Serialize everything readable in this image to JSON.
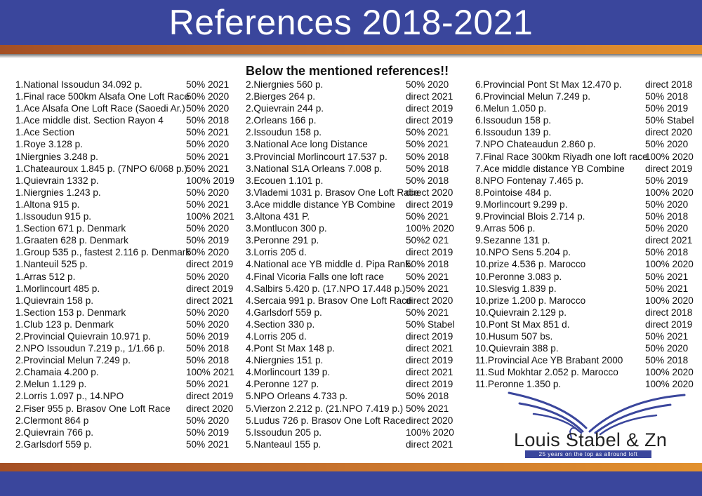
{
  "header": {
    "title": "References 2018-2021"
  },
  "subtitle": "Below the mentioned references!!",
  "colors": {
    "header_blue": "#3a469c",
    "band_orange": "#c8742e"
  },
  "columns": [
    [
      [
        "1.National Issoudun 34.092 p.",
        "50% 2021"
      ],
      [
        "1.Final race 500km Alsafa One Loft Race",
        "50% 2020"
      ],
      [
        "1.Ace Alsafa One Loft Race (Saoedi Ar.)",
        "50% 2020"
      ],
      [
        "1.Ace middle dist. Section Rayon 4",
        "50% 2018"
      ],
      [
        "1.Ace Section",
        "50% 2021"
      ],
      [
        "1.Roye 3.128 p.",
        "50% 2020"
      ],
      [
        "1Niergnies 3.248 p.",
        "50% 2021"
      ],
      [
        "1.Chateauroux 1.845 p. (7NPO 6/068 p.)",
        "50% 2021"
      ],
      [
        "1.Quievrain 1332 p.",
        "100% 2019"
      ],
      [
        "1.Niergnies 1.243 p.",
        "50% 2020"
      ],
      [
        "1.Altona 915 p.",
        "50% 2021"
      ],
      [
        "1.Issoudun 915 p.",
        "100% 2021"
      ],
      [
        "1.Section 671 p. Denmark",
        "50% 2020"
      ],
      [
        "1.Graaten 628 p. Denmark",
        "50% 2019"
      ],
      [
        "1.Group 535 p., fastest 2.116 p. Denmark",
        "50% 2020"
      ],
      [
        "1.Nanteuil 525 p.",
        "direct 2019"
      ],
      [
        "1.Arras 512 p.",
        "50% 2020"
      ],
      [
        "1.Morlincourt 485 p.",
        "direct 2019"
      ],
      [
        "1.Quievrain 158 p.",
        "direct 2021"
      ],
      [
        "1.Section 153 p. Denmark",
        "50% 2020"
      ],
      [
        "1.Club 123 p. Denmark",
        "50% 2020"
      ],
      [
        "2.Provincial Quievrain 10.971 p.",
        "50% 2019"
      ],
      [
        "2.NPO Issoudun 7.219 p., 1/1.66 p.",
        "50% 2018"
      ],
      [
        "2.Provincial Melun 7.249 p.",
        "50% 2018"
      ],
      [
        "2.Chamaia 4.200 p.",
        "100% 2021"
      ],
      [
        "2.Melun 1.129 p.",
        "50% 2021"
      ],
      [
        "2.Lorris 1.097 p., 14.NPO",
        "direct 2019"
      ],
      [
        "2.Fiser 955 p. Brasov One Loft Race",
        "direct 2020"
      ],
      [
        "2.Clermont 864 p",
        "50% 2020"
      ],
      [
        "2.Quievrain 766 p.",
        "50% 2019"
      ],
      [
        "2.Garlsdorf 559 p.",
        "50% 2021"
      ]
    ],
    [
      [
        "2.Niergnies 560 p.",
        "50% 2020"
      ],
      [
        "2.Bierges 264 p.",
        "direct 2021"
      ],
      [
        "2.Quievrain 244 p.",
        "direct 2019"
      ],
      [
        "2.Orleans 166 p.",
        "direct 2019"
      ],
      [
        "2.Issoudun 158 p.",
        "50% 2021"
      ],
      [
        "3.National Ace long Distance",
        "50% 2021"
      ],
      [
        "3.Provincial Morlincourt 17.537 p.",
        "50% 2018"
      ],
      [
        "3.National S1A Orleans 7.008 p.",
        "50%  2018"
      ],
      [
        "3.Ecouen 1.101 p.",
        "50% 2018"
      ],
      [
        "3.Vlademi 1031 p. Brasov One Loft Race",
        "direct 2020"
      ],
      [
        "3.Ace middle distance YB Combine",
        "direct 2019"
      ],
      [
        "3.Altona 431 P.",
        "50% 2021"
      ],
      [
        "3.Montlucon 300 p.",
        "100% 2020"
      ],
      [
        "3.Peronne 291 p.",
        "50%2 021"
      ],
      [
        "3.Lorris 205 d.",
        "direct 2019"
      ],
      [
        "4.National ace YB middle d. Pipa Rank.",
        "50% 2018"
      ],
      [
        "4.Final Vicoria Falls one loft race",
        "50% 2021"
      ],
      [
        "4.Salbirs 5.420 p. (17.NPO 17.448 p.)",
        "50% 2021"
      ],
      [
        "4.Sercaia 991 p. Brasov One Loft Race",
        "direct 2020"
      ],
      [
        "4.Garlsdorf 559 p.",
        "50% 2021"
      ],
      [
        "4.Section 330 p.",
        "50% Stabel"
      ],
      [
        "4.Lorris 205 d.",
        "direct 2019"
      ],
      [
        "4.Pont St Max 148 p.",
        "direct 2021"
      ],
      [
        "4.Niergnies 151 p.",
        "direct 2019"
      ],
      [
        "4.Morlincourt 139 p.",
        "direct 2021"
      ],
      [
        "4.Peronne 127 p.",
        "direct 2019"
      ],
      [
        "5.NPO Orleans 4.733 p.",
        "50% 2018"
      ],
      [
        "5.Vierzon 2.212 p. (21.NPO 7.419 p.)",
        "50% 2021"
      ],
      [
        "5.Ludus 726 p. Brasov One Loft Race",
        "direct 2020"
      ],
      [
        "5.Issoudun 205 p.",
        "100% 2020"
      ],
      [
        "5.Nanteaul 155 p.",
        "direct 2021"
      ]
    ],
    [
      [
        "6.Provincial Pont St Max 12.470 p.",
        "direct  2018"
      ],
      [
        "6.Provincial Melun 7.249 p.",
        "50%  2018"
      ],
      [
        "6.Melun 1.050 p.",
        "50% 2019"
      ],
      [
        "6.Issoudun 158 p.",
        "50% Stabel"
      ],
      [
        "6.Issoudun 139 p.",
        "direct 2020"
      ],
      [
        "7.NPO Chateaudun 2.860 p.",
        "50% 2020"
      ],
      [
        "7.Final Race 300km Riyadh one loft race",
        "100% 2020"
      ],
      [
        "7.Ace middle distance YB Combine",
        "direct 2019"
      ],
      [
        "8.NPO Fontenay 7.465 p.",
        "50% 2019"
      ],
      [
        "8.Pointoise 484 p.",
        "100% 2020"
      ],
      [
        "9.Morlincourt 9.299 p.",
        "50% 2020"
      ],
      [
        "9.Provincial Blois 2.714 p.",
        "50% 2018"
      ],
      [
        "9.Arras 506 p.",
        "50% 2020"
      ],
      [
        "9.Sezanne 131 p.",
        "direct 2021"
      ],
      [
        "10.NPO Sens 5.204 p.",
        "50%  2018"
      ],
      [
        "10.prize 4.536 p. Marocco",
        "100% 2020"
      ],
      [
        "10.Peronne 3.083 p.",
        "50% 2021"
      ],
      [
        "10.Slesvig 1.839 p.",
        "50% 2021"
      ],
      [
        "10.prize 1.200 p. Marocco",
        "100% 2020"
      ],
      [
        "10.Quievrain  2.129 p.",
        "direct 2018"
      ],
      [
        "10.Pont St Max 851 d.",
        "direct 2019"
      ],
      [
        "10.Husum 507 bs.",
        "50% 2021"
      ],
      [
        "10.Quievrain 388 p.",
        "50% 2020"
      ],
      [
        "11.Provincial Ace YB Brabant 2000",
        "50% 2018"
      ],
      [
        "11.Sud Mokhtar 2.052 p. Marocco",
        "100% 2020"
      ],
      [
        "11.Peronne 1.350 p.",
        "100% 2020"
      ]
    ]
  ],
  "logo": {
    "name": "Louis Stabel & Zn",
    "tagline": "25 years on the top as allround loft",
    "icon": "pigeon-wings-icon"
  }
}
